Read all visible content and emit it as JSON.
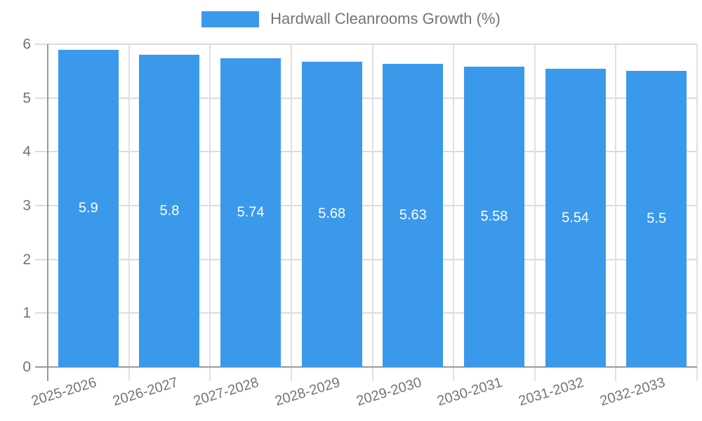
{
  "legend": {
    "label": "Hardwall Cleanrooms Growth (%)"
  },
  "chart_data": {
    "type": "bar",
    "title": "Hardwall Cleanrooms Growth (%)",
    "categories": [
      "2025-2026",
      "2026-2027",
      "2027-2028",
      "2028-2029",
      "2029-2030",
      "2030-2031",
      "2031-2032",
      "2032-2033"
    ],
    "values": [
      5.9,
      5.8,
      5.74,
      5.68,
      5.63,
      5.58,
      5.54,
      5.5
    ],
    "value_labels": [
      "5.9",
      "5.8",
      "5.74",
      "5.68",
      "5.63",
      "5.58",
      "5.54",
      "5.5"
    ],
    "xlabel": "",
    "ylabel": "",
    "ylim": [
      0,
      6
    ],
    "yticks": [
      0,
      1,
      2,
      3,
      4,
      5,
      6
    ],
    "grid": true,
    "legend_position": "top",
    "bar_color": "#3b99ec",
    "value_label_color": "#ffffff",
    "axis_text_color": "#737373",
    "grid_color": "#dcdcdc",
    "axis_line_color": "#999999"
  }
}
